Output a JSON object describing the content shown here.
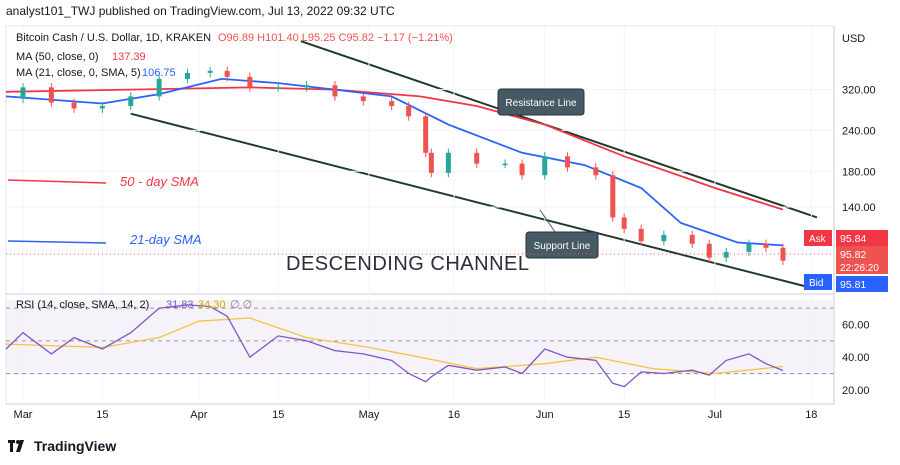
{
  "header": {
    "published": "analyst101_TWJ published on TradingView.com, Jul 13, 2022 09:32 UTC"
  },
  "legend": {
    "title": "Bitcoin Cash / U.S. Dollar, 1D, KRAKEN",
    "ohlc": "O96.89  H101.40  L95.25  C95.82  −1.17 (−1.21%)",
    "ma50_label": "MA (50, close, 0)",
    "ma50_value": "137.39",
    "ma21_label": "MA (21, close, 0, SMA, 5)",
    "ma21_value": "106.75",
    "rsi_label": "RSI (14, close, SMA, 14, 2)",
    "rsi_value": "31.83",
    "rsi_sma_value": "34.30",
    "rsi_extra": "∅  ∅"
  },
  "annotations": {
    "sma50": "50 - day SMA",
    "sma21": "21-day SMA",
    "channel": "DESCENDING CHANNEL",
    "resistance": "Resistance Line",
    "support": "Support Line"
  },
  "price_axis": {
    "currency": "USD",
    "ticks": [
      "320.00",
      "240.00",
      "180.00",
      "140.00"
    ],
    "ask_label": "Ask",
    "ask_value": "95.84",
    "last_value": "95.82",
    "countdown": "22:26:20",
    "bid_label": "Bid",
    "bid_value": "95.81"
  },
  "rsi_axis": {
    "ticks": [
      "60.00",
      "40.00",
      "20.00"
    ]
  },
  "time_axis": {
    "ticks": [
      "Mar",
      "15",
      "Apr",
      "15",
      "May",
      "16",
      "Jun",
      "15",
      "Jul",
      "18"
    ]
  },
  "footer": {
    "brand": "TradingView"
  },
  "colors": {
    "up": "#26a69a",
    "down": "#ef5350",
    "ma50": "#f23645",
    "ma21": "#2962ff",
    "rsi": "#7e57c2",
    "rsi_sma": "#f5c342",
    "channel": "#1f3a2a",
    "ask": "#f23645",
    "bid": "#2962ff"
  },
  "chart_data": {
    "type": "candlestick",
    "symbol": "Bitcoin Cash / U.S. Dollar",
    "interval": "1D",
    "exchange": "KRAKEN",
    "x_start": "2022-02-26",
    "x_end": "2022-07-22",
    "y_scale": "log",
    "ylim": [
      78,
      480
    ],
    "price": [
      [
        "2022-02-26",
        300
      ],
      [
        "2022-03-01",
        325
      ],
      [
        "2022-03-06",
        292
      ],
      [
        "2022-03-10",
        280
      ],
      [
        "2022-03-15",
        285
      ],
      [
        "2022-03-20",
        305
      ],
      [
        "2022-03-25",
        345
      ],
      [
        "2022-03-30",
        360
      ],
      [
        "2022-04-03",
        365
      ],
      [
        "2022-04-06",
        350
      ],
      [
        "2022-04-10",
        325
      ],
      [
        "2022-04-15",
        325
      ],
      [
        "2022-04-20",
        330
      ],
      [
        "2022-04-25",
        305
      ],
      [
        "2022-04-30",
        295
      ],
      [
        "2022-05-05",
        285
      ],
      [
        "2022-05-08",
        265
      ],
      [
        "2022-05-11",
        205
      ],
      [
        "2022-05-12",
        178
      ],
      [
        "2022-05-15",
        205
      ],
      [
        "2022-05-20",
        190
      ],
      [
        "2022-05-25",
        190
      ],
      [
        "2022-05-28",
        175
      ],
      [
        "2022-06-01",
        200
      ],
      [
        "2022-06-05",
        185
      ],
      [
        "2022-06-10",
        175
      ],
      [
        "2022-06-13",
        130
      ],
      [
        "2022-06-15",
        120
      ],
      [
        "2022-06-18",
        110
      ],
      [
        "2022-06-22",
        115
      ],
      [
        "2022-06-27",
        108
      ],
      [
        "2022-06-30",
        98
      ],
      [
        "2022-07-03",
        102
      ],
      [
        "2022-07-07",
        108
      ],
      [
        "2022-07-10",
        105
      ],
      [
        "2022-07-13",
        95.82
      ]
    ],
    "ma50": [
      [
        "2022-02-26",
        315
      ],
      [
        "2022-03-20",
        320
      ],
      [
        "2022-04-10",
        325
      ],
      [
        "2022-04-25",
        320
      ],
      [
        "2022-05-10",
        305
      ],
      [
        "2022-05-20",
        285
      ],
      [
        "2022-06-01",
        250
      ],
      [
        "2022-06-15",
        200
      ],
      [
        "2022-07-01",
        160
      ],
      [
        "2022-07-13",
        137.39
      ]
    ],
    "ma21": [
      [
        "2022-02-26",
        305
      ],
      [
        "2022-03-15",
        290
      ],
      [
        "2022-03-25",
        310
      ],
      [
        "2022-04-05",
        345
      ],
      [
        "2022-04-15",
        335
      ],
      [
        "2022-04-25",
        320
      ],
      [
        "2022-05-05",
        305
      ],
      [
        "2022-05-15",
        250
      ],
      [
        "2022-05-28",
        205
      ],
      [
        "2022-06-08",
        188
      ],
      [
        "2022-06-18",
        160
      ],
      [
        "2022-06-25",
        125
      ],
      [
        "2022-07-05",
        109
      ],
      [
        "2022-07-13",
        106.75
      ]
    ],
    "resistance_line": [
      [
        "2022-04-19",
        450
      ],
      [
        "2022-07-19",
        130
      ]
    ],
    "support_line": [
      [
        "2022-03-20",
        270
      ],
      [
        "2022-07-17",
        80
      ]
    ],
    "rsi": {
      "ylim": [
        15,
        75
      ],
      "levels": [
        70,
        50,
        30
      ],
      "series": [
        [
          "2022-02-26",
          45
        ],
        [
          "2022-03-01",
          55
        ],
        [
          "2022-03-06",
          42
        ],
        [
          "2022-03-10",
          52
        ],
        [
          "2022-03-15",
          45
        ],
        [
          "2022-03-20",
          55
        ],
        [
          "2022-03-25",
          70
        ],
        [
          "2022-03-30",
          72
        ],
        [
          "2022-04-03",
          71
        ],
        [
          "2022-04-06",
          65
        ],
        [
          "2022-04-10",
          40
        ],
        [
          "2022-04-15",
          53
        ],
        [
          "2022-04-20",
          50
        ],
        [
          "2022-04-25",
          44
        ],
        [
          "2022-04-30",
          42
        ],
        [
          "2022-05-05",
          38
        ],
        [
          "2022-05-08",
          30
        ],
        [
          "2022-05-11",
          25
        ],
        [
          "2022-05-12",
          28
        ],
        [
          "2022-05-15",
          35
        ],
        [
          "2022-05-20",
          32
        ],
        [
          "2022-05-25",
          34
        ],
        [
          "2022-05-28",
          30
        ],
        [
          "2022-06-01",
          45
        ],
        [
          "2022-06-05",
          40
        ],
        [
          "2022-06-10",
          38
        ],
        [
          "2022-06-13",
          24
        ],
        [
          "2022-06-15",
          22
        ],
        [
          "2022-06-18",
          31
        ],
        [
          "2022-06-22",
          30
        ],
        [
          "2022-06-27",
          32
        ],
        [
          "2022-06-30",
          29
        ],
        [
          "2022-07-03",
          38
        ],
        [
          "2022-07-07",
          42
        ],
        [
          "2022-07-10",
          36
        ],
        [
          "2022-07-13",
          31.83
        ]
      ],
      "sma": [
        [
          "2022-02-26",
          48
        ],
        [
          "2022-03-15",
          46
        ],
        [
          "2022-03-25",
          52
        ],
        [
          "2022-04-01",
          62
        ],
        [
          "2022-04-10",
          64
        ],
        [
          "2022-04-20",
          52
        ],
        [
          "2022-05-01",
          46
        ],
        [
          "2022-05-10",
          40
        ],
        [
          "2022-05-20",
          33
        ],
        [
          "2022-06-01",
          36
        ],
        [
          "2022-06-10",
          40
        ],
        [
          "2022-06-20",
          33
        ],
        [
          "2022-07-01",
          30
        ],
        [
          "2022-07-13",
          34.3
        ]
      ]
    }
  }
}
